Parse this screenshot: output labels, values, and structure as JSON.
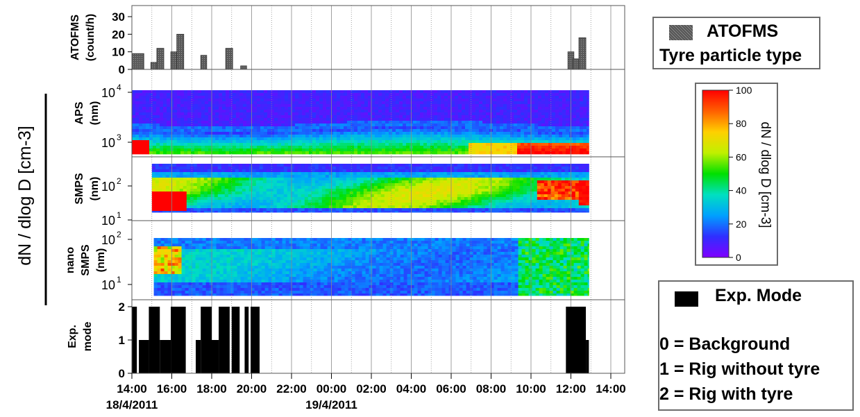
{
  "chart_data": {
    "type": "stacked time-series panels",
    "shared_axis": {
      "hours_range": [
        14,
        38
      ],
      "tick_labels": [
        "14:00",
        "16:00",
        "18:00",
        "20:00",
        "22:00",
        "00:00",
        "02:00",
        "04:00",
        "06:00",
        "08:00",
        "10:00",
        "12:00",
        "14:00"
      ],
      "date_labels": [
        {
          "label": "18/4/2011",
          "hour": 14
        },
        {
          "label": "19/4/2011",
          "hour": 24
        }
      ],
      "vertical_grid": "every hour"
    },
    "left_group_label": "dN / dlog D [cm-3]",
    "panels": [
      {
        "id": "atofms",
        "type": "bar",
        "ylabel_lines": [
          "ATOFMS",
          "(count/h)"
        ],
        "ylim": [
          0,
          30
        ],
        "yticks": [
          "0",
          "10",
          "20",
          "30"
        ],
        "bars": [
          {
            "x": 14.0,
            "w": 0.6,
            "v": 9
          },
          {
            "x": 14.95,
            "w": 0.3,
            "v": 4
          },
          {
            "x": 15.25,
            "w": 0.35,
            "v": 12
          },
          {
            "x": 15.95,
            "w": 0.3,
            "v": 10
          },
          {
            "x": 16.25,
            "w": 0.35,
            "v": 20
          },
          {
            "x": 17.45,
            "w": 0.3,
            "v": 8
          },
          {
            "x": 18.7,
            "w": 0.35,
            "v": 12
          },
          {
            "x": 19.45,
            "w": 0.3,
            "v": 2
          },
          {
            "x": 35.85,
            "w": 0.3,
            "v": 10
          },
          {
            "x": 36.1,
            "w": 0.3,
            "v": 6
          },
          {
            "x": 36.4,
            "w": 0.35,
            "v": 18
          }
        ]
      },
      {
        "id": "aps",
        "type": "heatmap",
        "ylabel_lines": [
          "APS",
          "(nm)"
        ],
        "ytick_labels": [
          {
            "base": "10",
            "exp": "4"
          },
          {
            "base": "10",
            "exp": "3"
          }
        ]
      },
      {
        "id": "smps",
        "type": "heatmap",
        "ylabel_lines": [
          "SMPS",
          "(nm)"
        ],
        "ytick_labels": [
          {
            "base": "10",
            "exp": "2"
          },
          {
            "base": "10",
            "exp": "1"
          }
        ]
      },
      {
        "id": "nano",
        "type": "heatmap",
        "ylabel_lines": [
          "nano",
          "SMPS",
          "(nm)"
        ],
        "ytick_labels": [
          {
            "base": "10",
            "exp": "2"
          },
          {
            "base": "10",
            "exp": "1"
          }
        ]
      },
      {
        "id": "exp",
        "type": "bar",
        "ylabel_lines": [
          "Exp.",
          "mode"
        ],
        "ylim": [
          0,
          2
        ],
        "yticks": [
          "0",
          "1",
          "2"
        ],
        "segments": [
          {
            "x0": 14.0,
            "x1": 14.25,
            "v": 2
          },
          {
            "x0": 14.25,
            "x1": 14.35,
            "v": 0
          },
          {
            "x0": 14.35,
            "x1": 14.85,
            "v": 1
          },
          {
            "x0": 14.85,
            "x1": 15.4,
            "v": 2
          },
          {
            "x0": 15.4,
            "x1": 15.95,
            "v": 1
          },
          {
            "x0": 15.95,
            "x1": 16.7,
            "v": 2
          },
          {
            "x0": 17.2,
            "x1": 17.45,
            "v": 1
          },
          {
            "x0": 17.45,
            "x1": 18.0,
            "v": 2
          },
          {
            "x0": 18.0,
            "x1": 18.35,
            "v": 1
          },
          {
            "x0": 18.35,
            "x1": 18.9,
            "v": 2
          },
          {
            "x0": 18.9,
            "x1": 19.0,
            "v": 0
          },
          {
            "x0": 19.0,
            "x1": 19.4,
            "v": 2
          },
          {
            "x0": 19.65,
            "x1": 19.85,
            "v": 2
          },
          {
            "x0": 19.95,
            "x1": 20.4,
            "v": 2
          },
          {
            "x0": 35.75,
            "x1": 36.75,
            "v": 2
          },
          {
            "x0": 36.75,
            "x1": 36.9,
            "v": 1
          }
        ]
      }
    ],
    "colorbar": {
      "label": "dN / dlog D [cm-3]",
      "ticks": [
        "0",
        "20",
        "40",
        "60",
        "80",
        "100"
      ],
      "range": [
        0,
        100
      ],
      "colormap": [
        "#7f00ff",
        "#2f2fff",
        "#00a0ff",
        "#00e0c0",
        "#00e000",
        "#c0f000",
        "#ffd000",
        "#ff6000",
        "#ff0000"
      ]
    },
    "legend_atofms": {
      "line1": "ATOFMS",
      "line2": "Tyre particle type",
      "swatch_color": "#6e6e6e"
    },
    "legend_exp": {
      "title": "Exp. Mode",
      "items": [
        "0 = Background",
        "1 = Rig without tyre",
        "2 = Rig with tyre"
      ],
      "swatch_color": "#000000"
    }
  }
}
